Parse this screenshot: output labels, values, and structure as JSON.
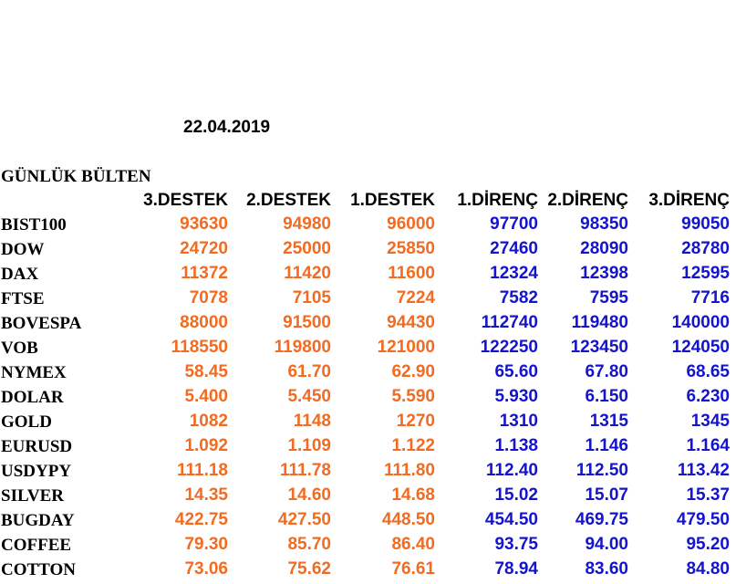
{
  "date": "22.04.2019",
  "title": "GÜNLÜK BÜLTEN",
  "headers": [
    "3.DESTEK",
    "2.DESTEK",
    "1.DESTEK",
    "1.DİRENÇ",
    "2.DİRENÇ",
    "3.DİRENÇ"
  ],
  "colors": {
    "support": "#f26b21",
    "resistance": "#1414cc",
    "label": "#000000"
  },
  "rows": [
    {
      "name": "BIST100",
      "v": [
        "93630",
        "94980",
        "96000",
        "97700",
        "98350",
        "99050"
      ]
    },
    {
      "name": "DOW",
      "v": [
        "24720",
        "25000",
        "25850",
        "27460",
        "28090",
        "28780"
      ]
    },
    {
      "name": "DAX",
      "v": [
        "11372",
        "11420",
        "11600",
        "12324",
        "12398",
        "12595"
      ]
    },
    {
      "name": "FTSE",
      "v": [
        "7078",
        "7105",
        "7224",
        "7582",
        "7595",
        "7716"
      ]
    },
    {
      "name": "BOVESPA",
      "v": [
        "88000",
        "91500",
        "94430",
        "112740",
        "119480",
        "140000"
      ]
    },
    {
      "name": "VOB",
      "v": [
        "118550",
        "119800",
        "121000",
        "122250",
        "123450",
        "124050"
      ]
    },
    {
      "name": "NYMEX",
      "v": [
        "58.45",
        "61.70",
        "62.90",
        "65.60",
        "67.80",
        "68.65"
      ]
    },
    {
      "name": "DOLAR",
      "v": [
        "5.400",
        "5.450",
        "5.590",
        "5.930",
        "6.150",
        "6.230"
      ]
    },
    {
      "name": "GOLD",
      "v": [
        "1082",
        "1148",
        "1270",
        "1310",
        "1315",
        "1345"
      ]
    },
    {
      "name": "EURUSD",
      "v": [
        "1.092",
        "1.109",
        "1.122",
        "1.138",
        "1.146",
        "1.164"
      ]
    },
    {
      "name": "USDYPY",
      "v": [
        "111.18",
        "111.78",
        "111.80",
        "112.40",
        "112.50",
        "113.42"
      ]
    },
    {
      "name": "SILVER",
      "v": [
        "14.35",
        "14.60",
        "14.68",
        "15.02",
        "15.07",
        "15.37"
      ]
    },
    {
      "name": "BUGDAY",
      "v": [
        "422.75",
        "427.50",
        "448.50",
        "454.50",
        "469.75",
        "479.50"
      ]
    },
    {
      "name": "COFFEE",
      "v": [
        "79.30",
        "85.70",
        "86.40",
        "93.75",
        "94.00",
        "95.20"
      ]
    },
    {
      "name": "COTTON",
      "v": [
        "73.06",
        "75.62",
        "76.61",
        "78.94",
        "83.60",
        "84.80"
      ]
    }
  ]
}
